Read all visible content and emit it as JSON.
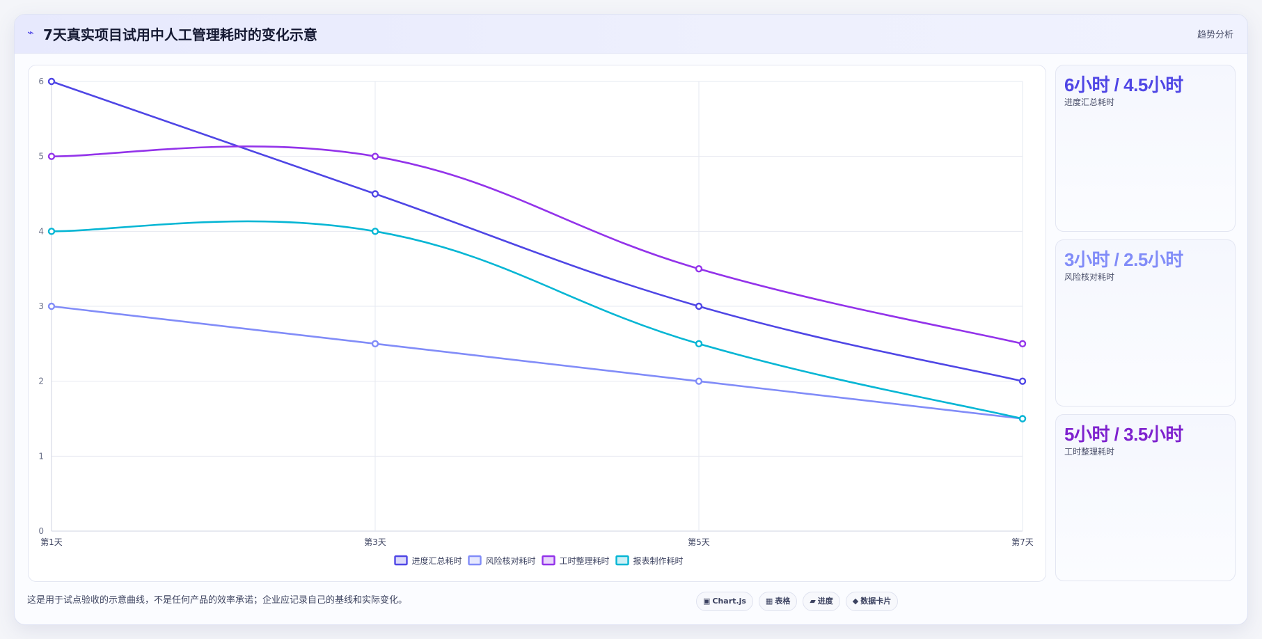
{
  "header": {
    "icon": "trend-icon",
    "title": "7天真实项目试用中人工管理耗时的变化示意",
    "tag": "趋势分析"
  },
  "kpis": [
    {
      "value": "6小时 / 4.5小时",
      "label": "进度汇总耗时",
      "color": "#4f46e5"
    },
    {
      "value": "3小时 / 2.5小时",
      "label": "风险核对耗时",
      "color": "#818cf8"
    },
    {
      "value": "5小时 / 3.5小时",
      "label": "工时整理耗时",
      "color": "#7e22ce"
    }
  ],
  "footer": {
    "note": "这是用于试点验收的示意曲线，不是任何产品的效率承诺；企业应记录自己的基线和实际变化。",
    "chips": [
      {
        "icon": "▣",
        "label": "Chart.js"
      },
      {
        "icon": "▦",
        "label": "表格"
      },
      {
        "icon": "▰",
        "label": "进度"
      },
      {
        "icon": "◆",
        "label": "数据卡片"
      }
    ]
  },
  "chart_data": {
    "type": "line",
    "categories": [
      "第1天",
      "第3天",
      "第5天",
      "第7天"
    ],
    "ylim": [
      0,
      6
    ],
    "yticks": [
      0,
      1,
      2,
      3,
      4,
      5,
      6
    ],
    "grid": true,
    "legend_position": "bottom",
    "series": [
      {
        "name": "进度汇总耗时",
        "values": [
          6,
          4.5,
          3,
          2
        ],
        "color": "#4f46e5"
      },
      {
        "name": "风险核对耗时",
        "values": [
          3,
          2.5,
          2,
          1.5
        ],
        "color": "#818cf8"
      },
      {
        "name": "工时整理耗时",
        "values": [
          5,
          5,
          3.5,
          2.5
        ],
        "color": "#9333ea"
      },
      {
        "name": "报表制作耗时",
        "values": [
          4,
          4,
          2.5,
          1.5
        ],
        "color": "#06b6d4"
      }
    ]
  }
}
